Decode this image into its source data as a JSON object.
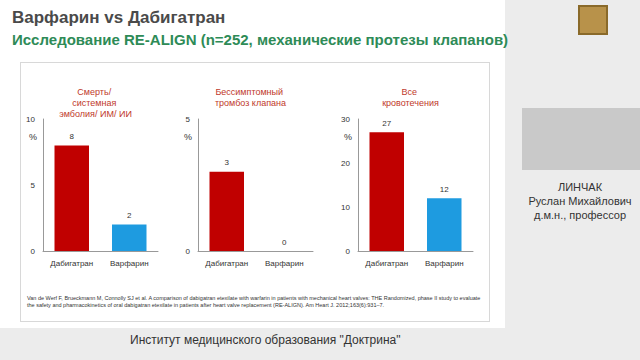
{
  "slide": {
    "title": "Варфарин vs Дабигатран",
    "subtitle": "Исследование RE-ALIGN (n=252, механические протезы клапанов)",
    "citation": "Van de Werf F, Brueckmann M, Connolly SJ et al. A comparison of dabigatran etexilate with warfarin in patients with mechanical heart valves: THE Randomized, phase II study to evaluate the safety and pharmacokinetics of oral dabigatran etexilate in patients after heart valve replacement (RE-ALIGN). Am Heart J. 2012;163(6):931–7.",
    "speaker": [
      "ЛИНЧАК",
      "Руслан Михайлович",
      "д.м.н., профессор"
    ],
    "footer": "Институт медицинского образования \"Доктрина\""
  },
  "chart_data": [
    {
      "type": "bar",
      "title": "Смерть/ системная эмболия/ ИМ/ ИИ",
      "ylabel": "%",
      "categories": [
        "Дабигатран",
        "Варфарин"
      ],
      "values": [
        8,
        2
      ],
      "colors": [
        "#c00000",
        "#1e9be0"
      ],
      "ylim": [
        0,
        10
      ],
      "yticks": [
        0,
        5,
        10
      ],
      "grid": false,
      "data_labels": true
    },
    {
      "type": "bar",
      "title": "Бессимптомный тромбоз клапана",
      "ylabel": "%",
      "categories": [
        "Дабигатран",
        "Варфарин"
      ],
      "values": [
        3,
        0
      ],
      "colors": [
        "#c00000",
        "#1e9be0"
      ],
      "ylim": [
        0,
        5
      ],
      "yticks": [
        0,
        5
      ],
      "grid": false,
      "data_labels": true
    },
    {
      "type": "bar",
      "title": "Все кровотечения",
      "ylabel": "%",
      "categories": [
        "Дабигатран",
        "Варфарин"
      ],
      "values": [
        27,
        12
      ],
      "colors": [
        "#c00000",
        "#1e9be0"
      ],
      "ylim": [
        0,
        30
      ],
      "yticks": [
        0,
        10,
        20,
        30
      ],
      "grid": false,
      "data_labels": true
    }
  ]
}
